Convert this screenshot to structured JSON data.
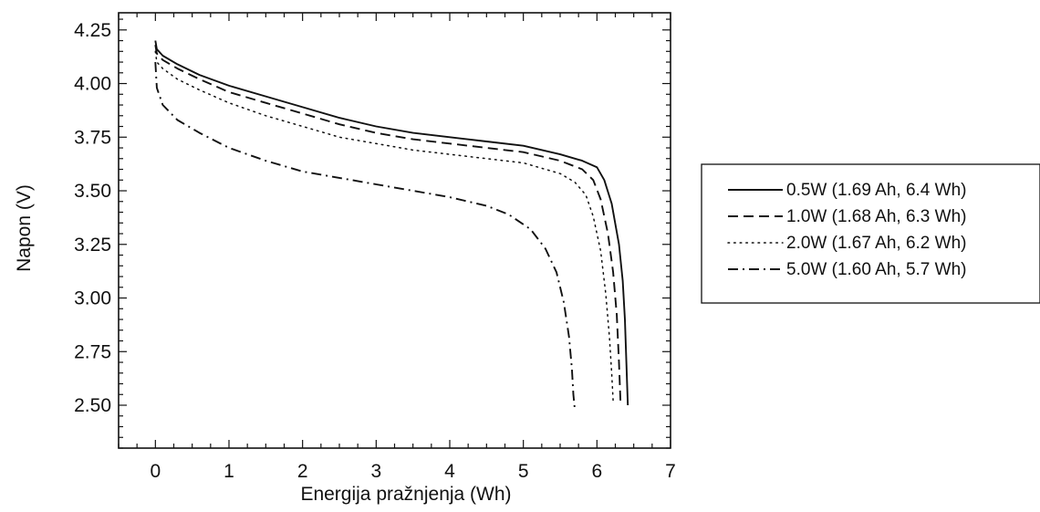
{
  "chart_data": {
    "type": "line",
    "title": "",
    "xlabel": "Energija pražnjenja (Wh)",
    "ylabel": "Napon (V)",
    "xlim": [
      -0.5,
      7
    ],
    "ylim": [
      2.3,
      4.33
    ],
    "x_ticks": [
      0,
      1,
      2,
      3,
      4,
      5,
      6,
      7
    ],
    "y_ticks": [
      2.5,
      2.75,
      3.0,
      3.25,
      3.5,
      3.75,
      4.0,
      4.25
    ],
    "x_tick_labels": [
      "0",
      "1",
      "2",
      "3",
      "4",
      "5",
      "6",
      "7"
    ],
    "y_tick_labels": [
      "2.50",
      "2.75",
      "3.00",
      "3.25",
      "3.50",
      "3.75",
      "4.00",
      "4.25"
    ],
    "grid": false,
    "legend_position": "right-outside",
    "series": [
      {
        "name": "0.5W (1.69 Ah, 6.4 Wh)",
        "style": "solid",
        "color": "#111111",
        "x": [
          0,
          0.02,
          0.1,
          0.3,
          0.6,
          1.0,
          1.5,
          2.0,
          2.5,
          3.0,
          3.5,
          4.0,
          4.5,
          5.0,
          5.5,
          5.8,
          6.0,
          6.1,
          6.2,
          6.3,
          6.35,
          6.38,
          6.4,
          6.42
        ],
        "y": [
          4.2,
          4.16,
          4.13,
          4.09,
          4.04,
          3.99,
          3.94,
          3.89,
          3.84,
          3.8,
          3.77,
          3.75,
          3.73,
          3.71,
          3.67,
          3.64,
          3.61,
          3.55,
          3.44,
          3.25,
          3.08,
          2.9,
          2.7,
          2.5
        ]
      },
      {
        "name": "1.0W (1.68 Ah, 6.3 Wh)",
        "style": "dashed",
        "color": "#111111",
        "x": [
          0,
          0.02,
          0.1,
          0.3,
          0.6,
          1.0,
          1.5,
          2.0,
          2.5,
          3.0,
          3.5,
          4.0,
          4.5,
          5.0,
          5.5,
          5.8,
          5.95,
          6.05,
          6.15,
          6.22,
          6.27,
          6.3,
          6.32
        ],
        "y": [
          4.18,
          4.14,
          4.11,
          4.07,
          4.02,
          3.96,
          3.91,
          3.86,
          3.81,
          3.77,
          3.74,
          3.72,
          3.7,
          3.68,
          3.64,
          3.6,
          3.55,
          3.46,
          3.3,
          3.12,
          2.92,
          2.7,
          2.52
        ]
      },
      {
        "name": "2.0W (1.67 Ah, 6.2 Wh)",
        "style": "dotted",
        "color": "#111111",
        "x": [
          0,
          0.02,
          0.1,
          0.3,
          0.6,
          1.0,
          1.5,
          2.0,
          2.5,
          3.0,
          3.5,
          4.0,
          4.5,
          5.0,
          5.5,
          5.7,
          5.85,
          5.95,
          6.05,
          6.12,
          6.17,
          6.2,
          6.22
        ],
        "y": [
          4.15,
          4.1,
          4.07,
          4.02,
          3.97,
          3.91,
          3.85,
          3.8,
          3.75,
          3.72,
          3.69,
          3.67,
          3.65,
          3.63,
          3.58,
          3.54,
          3.48,
          3.38,
          3.22,
          3.02,
          2.82,
          2.65,
          2.52
        ]
      },
      {
        "name": "5.0W (1.60 Ah, 5.7 Wh)",
        "style": "dashdot",
        "color": "#111111",
        "x": [
          0,
          0.02,
          0.1,
          0.3,
          0.6,
          1.0,
          1.5,
          2.0,
          2.5,
          3.0,
          3.5,
          4.0,
          4.5,
          4.8,
          5.1,
          5.3,
          5.45,
          5.55,
          5.62,
          5.66,
          5.68,
          5.7
        ],
        "y": [
          4.1,
          3.98,
          3.9,
          3.83,
          3.77,
          3.7,
          3.64,
          3.59,
          3.56,
          3.53,
          3.5,
          3.47,
          3.43,
          3.39,
          3.32,
          3.23,
          3.12,
          2.98,
          2.82,
          2.67,
          2.55,
          2.48
        ]
      }
    ]
  }
}
